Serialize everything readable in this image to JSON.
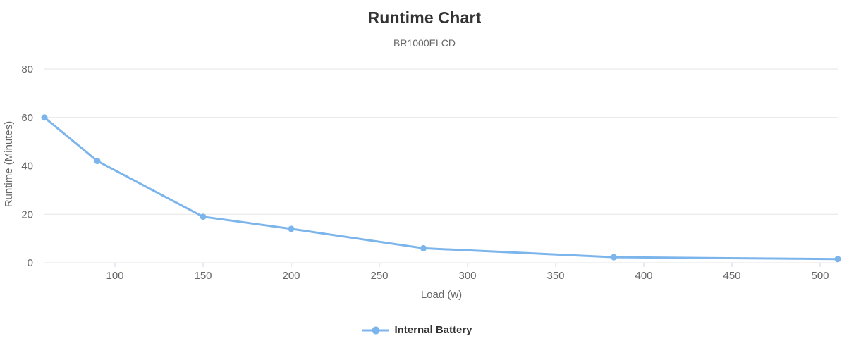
{
  "chart_data": {
    "type": "line",
    "title": "Runtime Chart",
    "subtitle": "BR1000ELCD",
    "xlabel": "Load (w)",
    "ylabel": "Runtime (Minutes)",
    "xlim": [
      60,
      510
    ],
    "ylim": [
      0,
      80
    ],
    "xticks": [
      100,
      150,
      200,
      250,
      300,
      350,
      400,
      450,
      500
    ],
    "yticks": [
      0,
      20,
      40,
      60,
      80
    ],
    "grid": "horizontal-only",
    "legend_position": "bottom-center",
    "series": [
      {
        "name": "Internal Battery",
        "color": "#7cb5ec",
        "marker": "circle",
        "x": [
          60,
          90,
          150,
          200,
          275,
          383,
          510
        ],
        "y": [
          60,
          42,
          19,
          14,
          6,
          2.3,
          1.5
        ]
      }
    ]
  },
  "colors": {
    "series": "#7cb5ec",
    "grid_line": "#e6e6e6",
    "axis_line": "#ccd6eb",
    "title_text": "#333333",
    "muted_text": "#666666",
    "background": "#ffffff"
  }
}
